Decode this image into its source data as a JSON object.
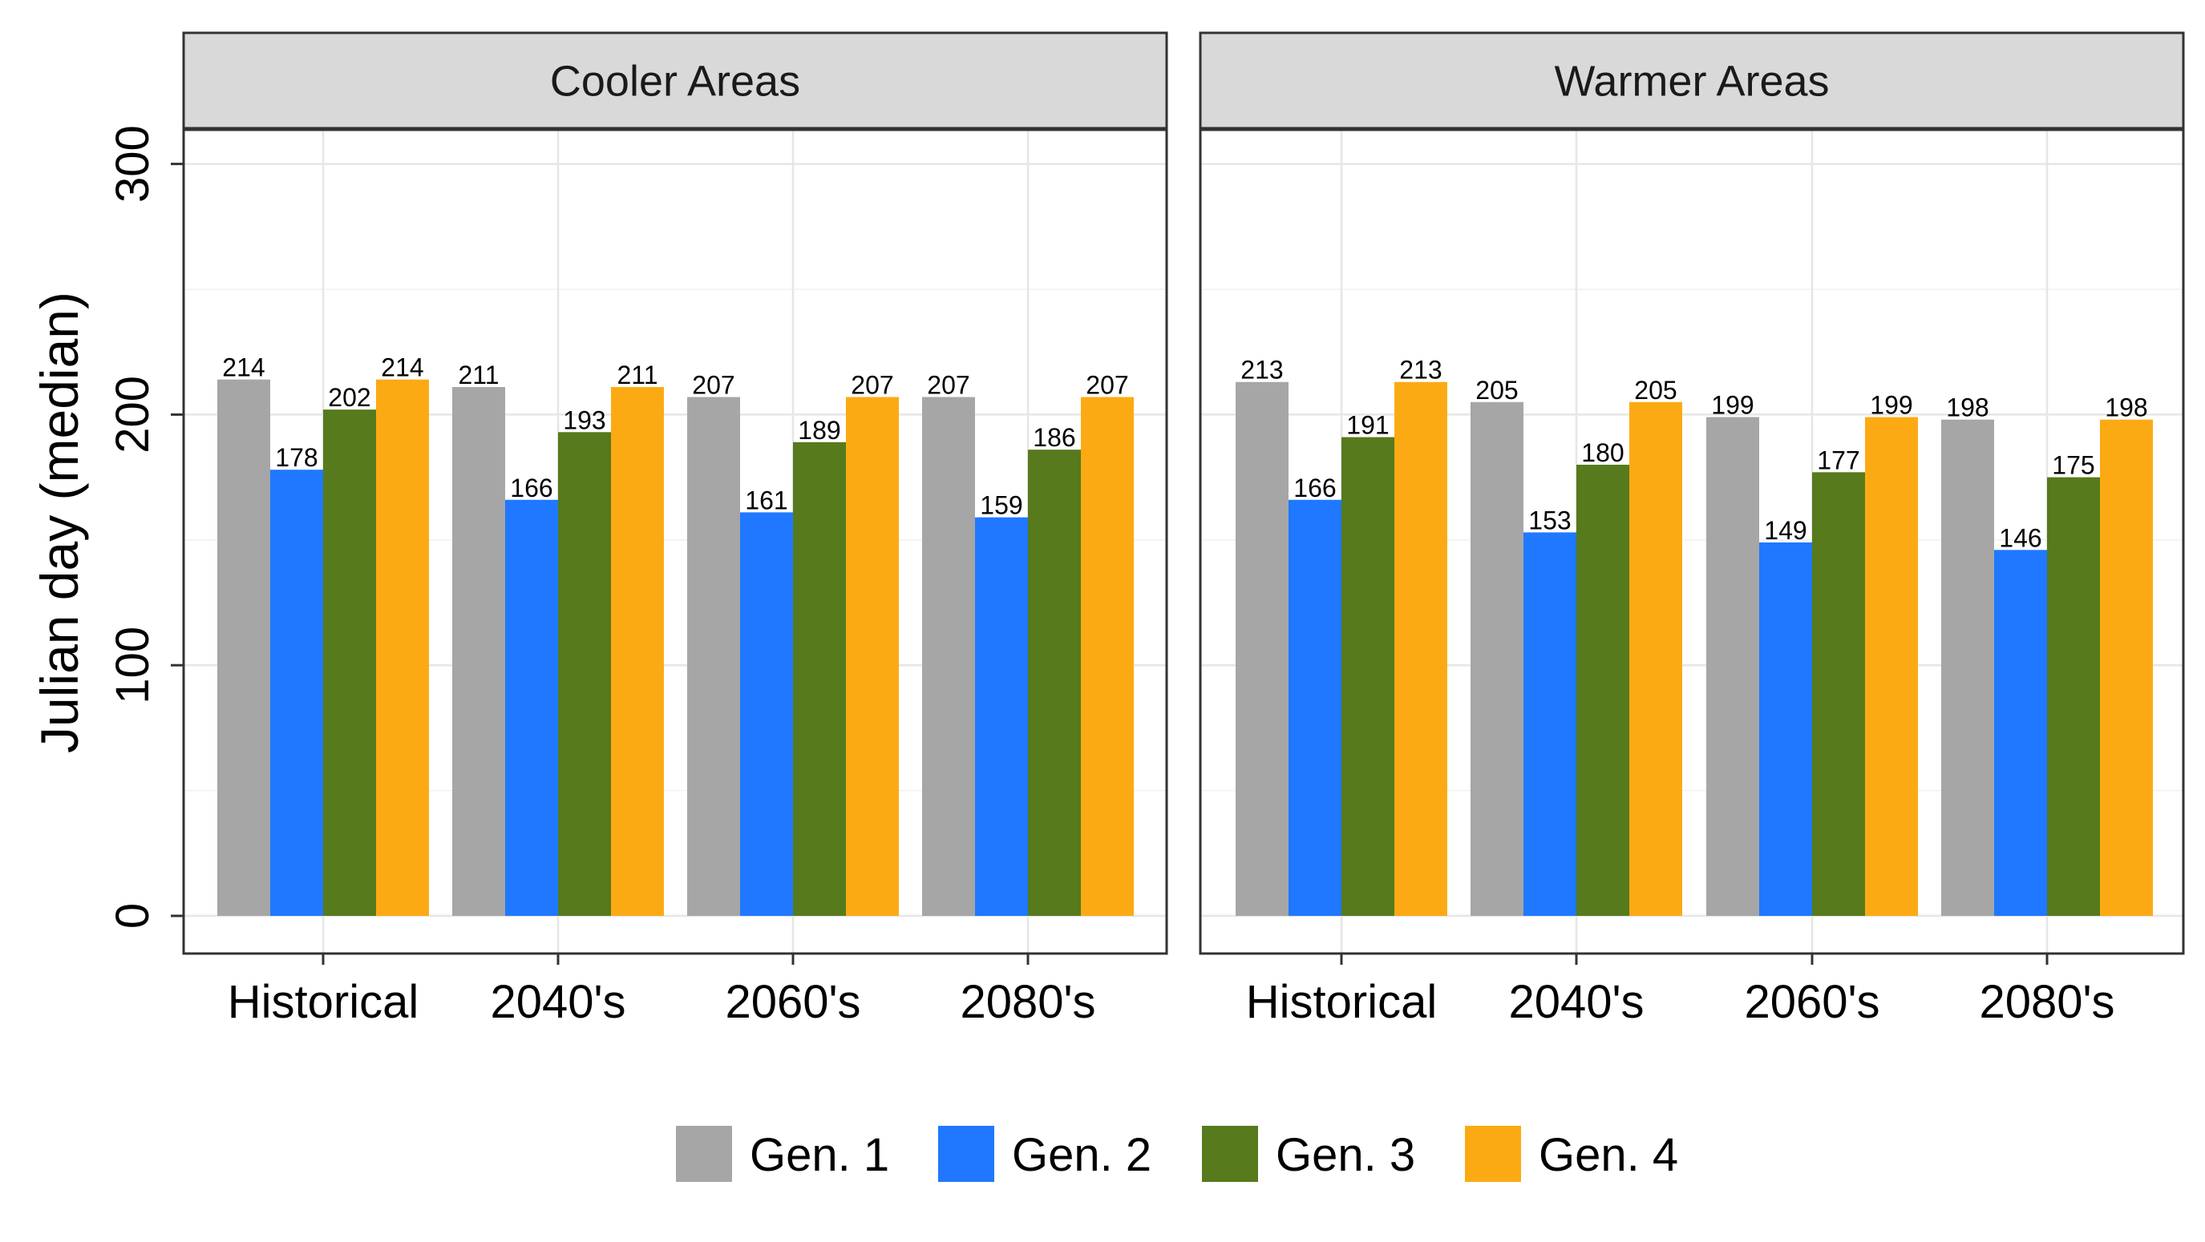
{
  "chart_data": {
    "type": "bar",
    "ylabel": "Julian day (median)",
    "xlabel": "",
    "ylim": [
      -17,
      314
    ],
    "yticks": [
      0,
      100,
      200,
      300
    ],
    "yticks_label": [
      "0",
      "100",
      "200",
      "300"
    ],
    "grid": true,
    "legend_position": "bottom",
    "categories": [
      "Historical",
      "2040's",
      "2060's",
      "2080's"
    ],
    "colors": {
      "Gen. 1": "#a6a6a6",
      "Gen. 2": "#1f78ff",
      "Gen. 3": "#567a1c",
      "Gen. 4": "#fcaa14"
    },
    "facets": [
      {
        "title": "Cooler Areas",
        "series": [
          {
            "name": "Gen. 1",
            "values": [
              214,
              211,
              207,
              207
            ]
          },
          {
            "name": "Gen. 2",
            "values": [
              178,
              166,
              161,
              159
            ]
          },
          {
            "name": "Gen. 3",
            "values": [
              202,
              193,
              189,
              186
            ]
          },
          {
            "name": "Gen. 4",
            "values": [
              214,
              211,
              207,
              207
            ]
          }
        ]
      },
      {
        "title": "Warmer Areas",
        "series": [
          {
            "name": "Gen. 1",
            "values": [
              213,
              205,
              199,
              198
            ]
          },
          {
            "name": "Gen. 2",
            "values": [
              166,
              153,
              149,
              146
            ]
          },
          {
            "name": "Gen. 3",
            "values": [
              191,
              180,
              177,
              175
            ]
          },
          {
            "name": "Gen. 4",
            "values": [
              213,
              205,
              199,
              198
            ]
          }
        ]
      }
    ],
    "legend": [
      "Gen. 1",
      "Gen. 2",
      "Gen. 3",
      "Gen. 4"
    ]
  }
}
